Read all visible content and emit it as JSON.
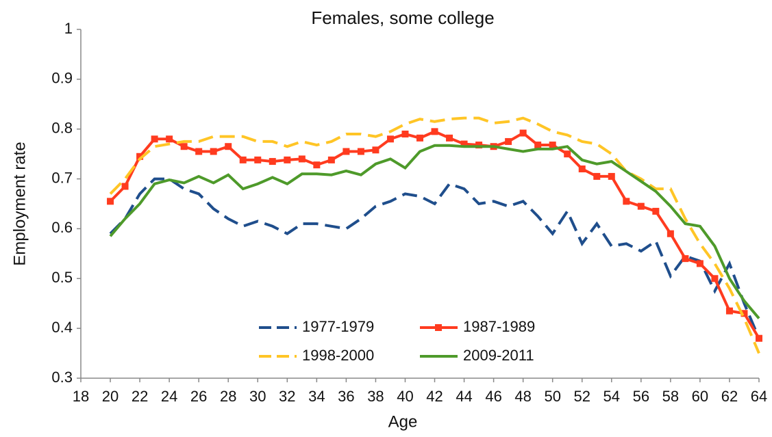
{
  "chart_data": {
    "type": "line",
    "title": "Females, some college",
    "x_label": "Age",
    "y_label": "Employment rate",
    "x": [
      20,
      21,
      22,
      23,
      24,
      25,
      26,
      27,
      28,
      29,
      30,
      31,
      32,
      33,
      34,
      35,
      36,
      37,
      38,
      39,
      40,
      41,
      42,
      43,
      44,
      45,
      46,
      47,
      48,
      49,
      50,
      51,
      52,
      53,
      54,
      55,
      56,
      57,
      58,
      59,
      60,
      61,
      62,
      63,
      64
    ],
    "series": [
      {
        "name": "1977-1979",
        "color": "#1f4e8c",
        "line_style": "dashed",
        "marker": "none",
        "values": [
          0.59,
          0.62,
          0.67,
          0.7,
          0.7,
          0.68,
          0.67,
          0.64,
          0.62,
          0.605,
          0.615,
          0.605,
          0.59,
          0.61,
          0.61,
          0.605,
          0.6,
          0.62,
          0.645,
          0.655,
          0.67,
          0.665,
          0.65,
          0.69,
          0.68,
          0.65,
          0.655,
          0.645,
          0.655,
          0.625,
          0.59,
          0.635,
          0.57,
          0.61,
          0.565,
          0.57,
          0.555,
          0.575,
          0.505,
          0.545,
          0.535,
          0.475,
          0.53,
          0.45,
          0.38
        ]
      },
      {
        "name": "1987-1989",
        "color": "#ff3b1f",
        "line_style": "solid",
        "marker": "square",
        "values": [
          0.655,
          0.685,
          0.745,
          0.78,
          0.78,
          0.765,
          0.755,
          0.755,
          0.765,
          0.738,
          0.738,
          0.735,
          0.738,
          0.74,
          0.728,
          0.738,
          0.755,
          0.755,
          0.758,
          0.78,
          0.79,
          0.782,
          0.795,
          0.782,
          0.77,
          0.768,
          0.765,
          0.775,
          0.792,
          0.768,
          0.768,
          0.75,
          0.72,
          0.705,
          0.705,
          0.655,
          0.645,
          0.635,
          0.59,
          0.54,
          0.53,
          0.5,
          0.435,
          0.43,
          0.38
        ]
      },
      {
        "name": "1998-2000",
        "color": "#ffc526",
        "line_style": "dashed",
        "marker": "none",
        "values": [
          0.67,
          0.7,
          0.74,
          0.765,
          0.77,
          0.775,
          0.775,
          0.785,
          0.785,
          0.785,
          0.775,
          0.775,
          0.765,
          0.775,
          0.768,
          0.775,
          0.79,
          0.79,
          0.785,
          0.795,
          0.81,
          0.82,
          0.815,
          0.82,
          0.822,
          0.822,
          0.812,
          0.815,
          0.822,
          0.81,
          0.795,
          0.788,
          0.775,
          0.77,
          0.75,
          0.715,
          0.7,
          0.68,
          0.68,
          0.62,
          0.57,
          0.53,
          0.48,
          0.42,
          0.35
        ]
      },
      {
        "name": "2009-2011",
        "color": "#4e9a2a",
        "line_style": "solid",
        "marker": "none",
        "values": [
          0.585,
          0.62,
          0.65,
          0.69,
          0.698,
          0.692,
          0.705,
          0.692,
          0.708,
          0.68,
          0.69,
          0.703,
          0.69,
          0.71,
          0.71,
          0.708,
          0.716,
          0.708,
          0.73,
          0.74,
          0.722,
          0.755,
          0.767,
          0.767,
          0.765,
          0.765,
          0.765,
          0.76,
          0.755,
          0.76,
          0.76,
          0.765,
          0.738,
          0.73,
          0.735,
          0.715,
          0.695,
          0.675,
          0.645,
          0.61,
          0.605,
          0.565,
          0.5,
          0.455,
          0.42
        ]
      }
    ],
    "xlim": [
      18,
      64
    ],
    "xticks": [
      18,
      20,
      22,
      24,
      26,
      28,
      30,
      32,
      34,
      36,
      38,
      40,
      42,
      44,
      46,
      48,
      50,
      52,
      54,
      56,
      58,
      60,
      62,
      64
    ],
    "ylim": [
      0.3,
      1
    ],
    "yticks": [
      0.3,
      0.4,
      0.5,
      0.6,
      0.7,
      0.8,
      0.9,
      1
    ],
    "grid": false,
    "legend_position": "lower center"
  }
}
